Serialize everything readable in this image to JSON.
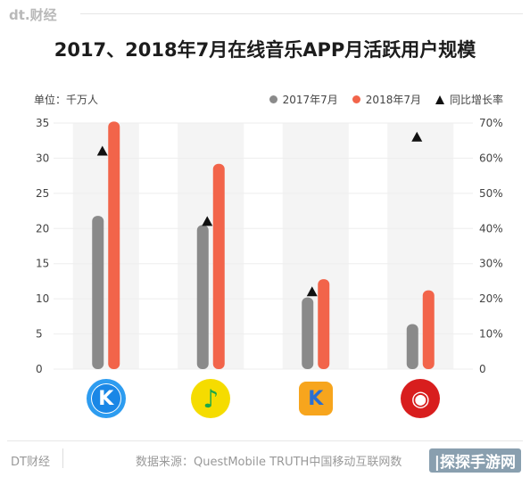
{
  "header": {
    "brand": "dt.财经"
  },
  "chart_data": {
    "type": "bar",
    "title": "2017、2018年7月在线音乐APP月活跃用户规模",
    "unit_label": "单位：千万人",
    "categories": [
      "酷狗音乐",
      "QQ音乐",
      "酷我音乐",
      "网易云音乐"
    ],
    "series": [
      {
        "name": "2017年7月",
        "type": "bar",
        "color": "#8a8a8a",
        "values": [
          21.8,
          20.5,
          10.2,
          6.4
        ]
      },
      {
        "name": "2018年7月",
        "type": "bar",
        "color": "#f2644a",
        "values": [
          35.2,
          29.2,
          12.8,
          11.2
        ]
      },
      {
        "name": "同比增长率",
        "type": "scatter",
        "axis": "right",
        "marker": "triangle",
        "color": "#111111",
        "values": [
          62,
          42,
          22,
          66
        ]
      }
    ],
    "y_left": {
      "min": 0,
      "max": 35,
      "ticks": [
        0,
        5,
        10,
        15,
        20,
        25,
        30,
        35
      ]
    },
    "y_right": {
      "min": 0,
      "max": 70,
      "ticks": [
        "0",
        "10%",
        "20%",
        "30%",
        "40%",
        "50%",
        "60%",
        "70%"
      ]
    },
    "legend_position": "top-right",
    "grid": true
  },
  "icons": [
    {
      "name": "kugou-icon",
      "label": "K",
      "bg": "#1a87e6"
    },
    {
      "name": "qqmusic-icon",
      "label": "♪",
      "bg": "#f5dc00"
    },
    {
      "name": "kuwo-icon",
      "label": "K",
      "bg": "#f7a51d"
    },
    {
      "name": "netease-icon",
      "label": "◉",
      "bg": "#d81e1e"
    }
  ],
  "footer": {
    "brand": "DT财经",
    "source": "数据来源：QuestMobile TRUTH中国移动互联网数",
    "watermark": "|探探手游网"
  }
}
